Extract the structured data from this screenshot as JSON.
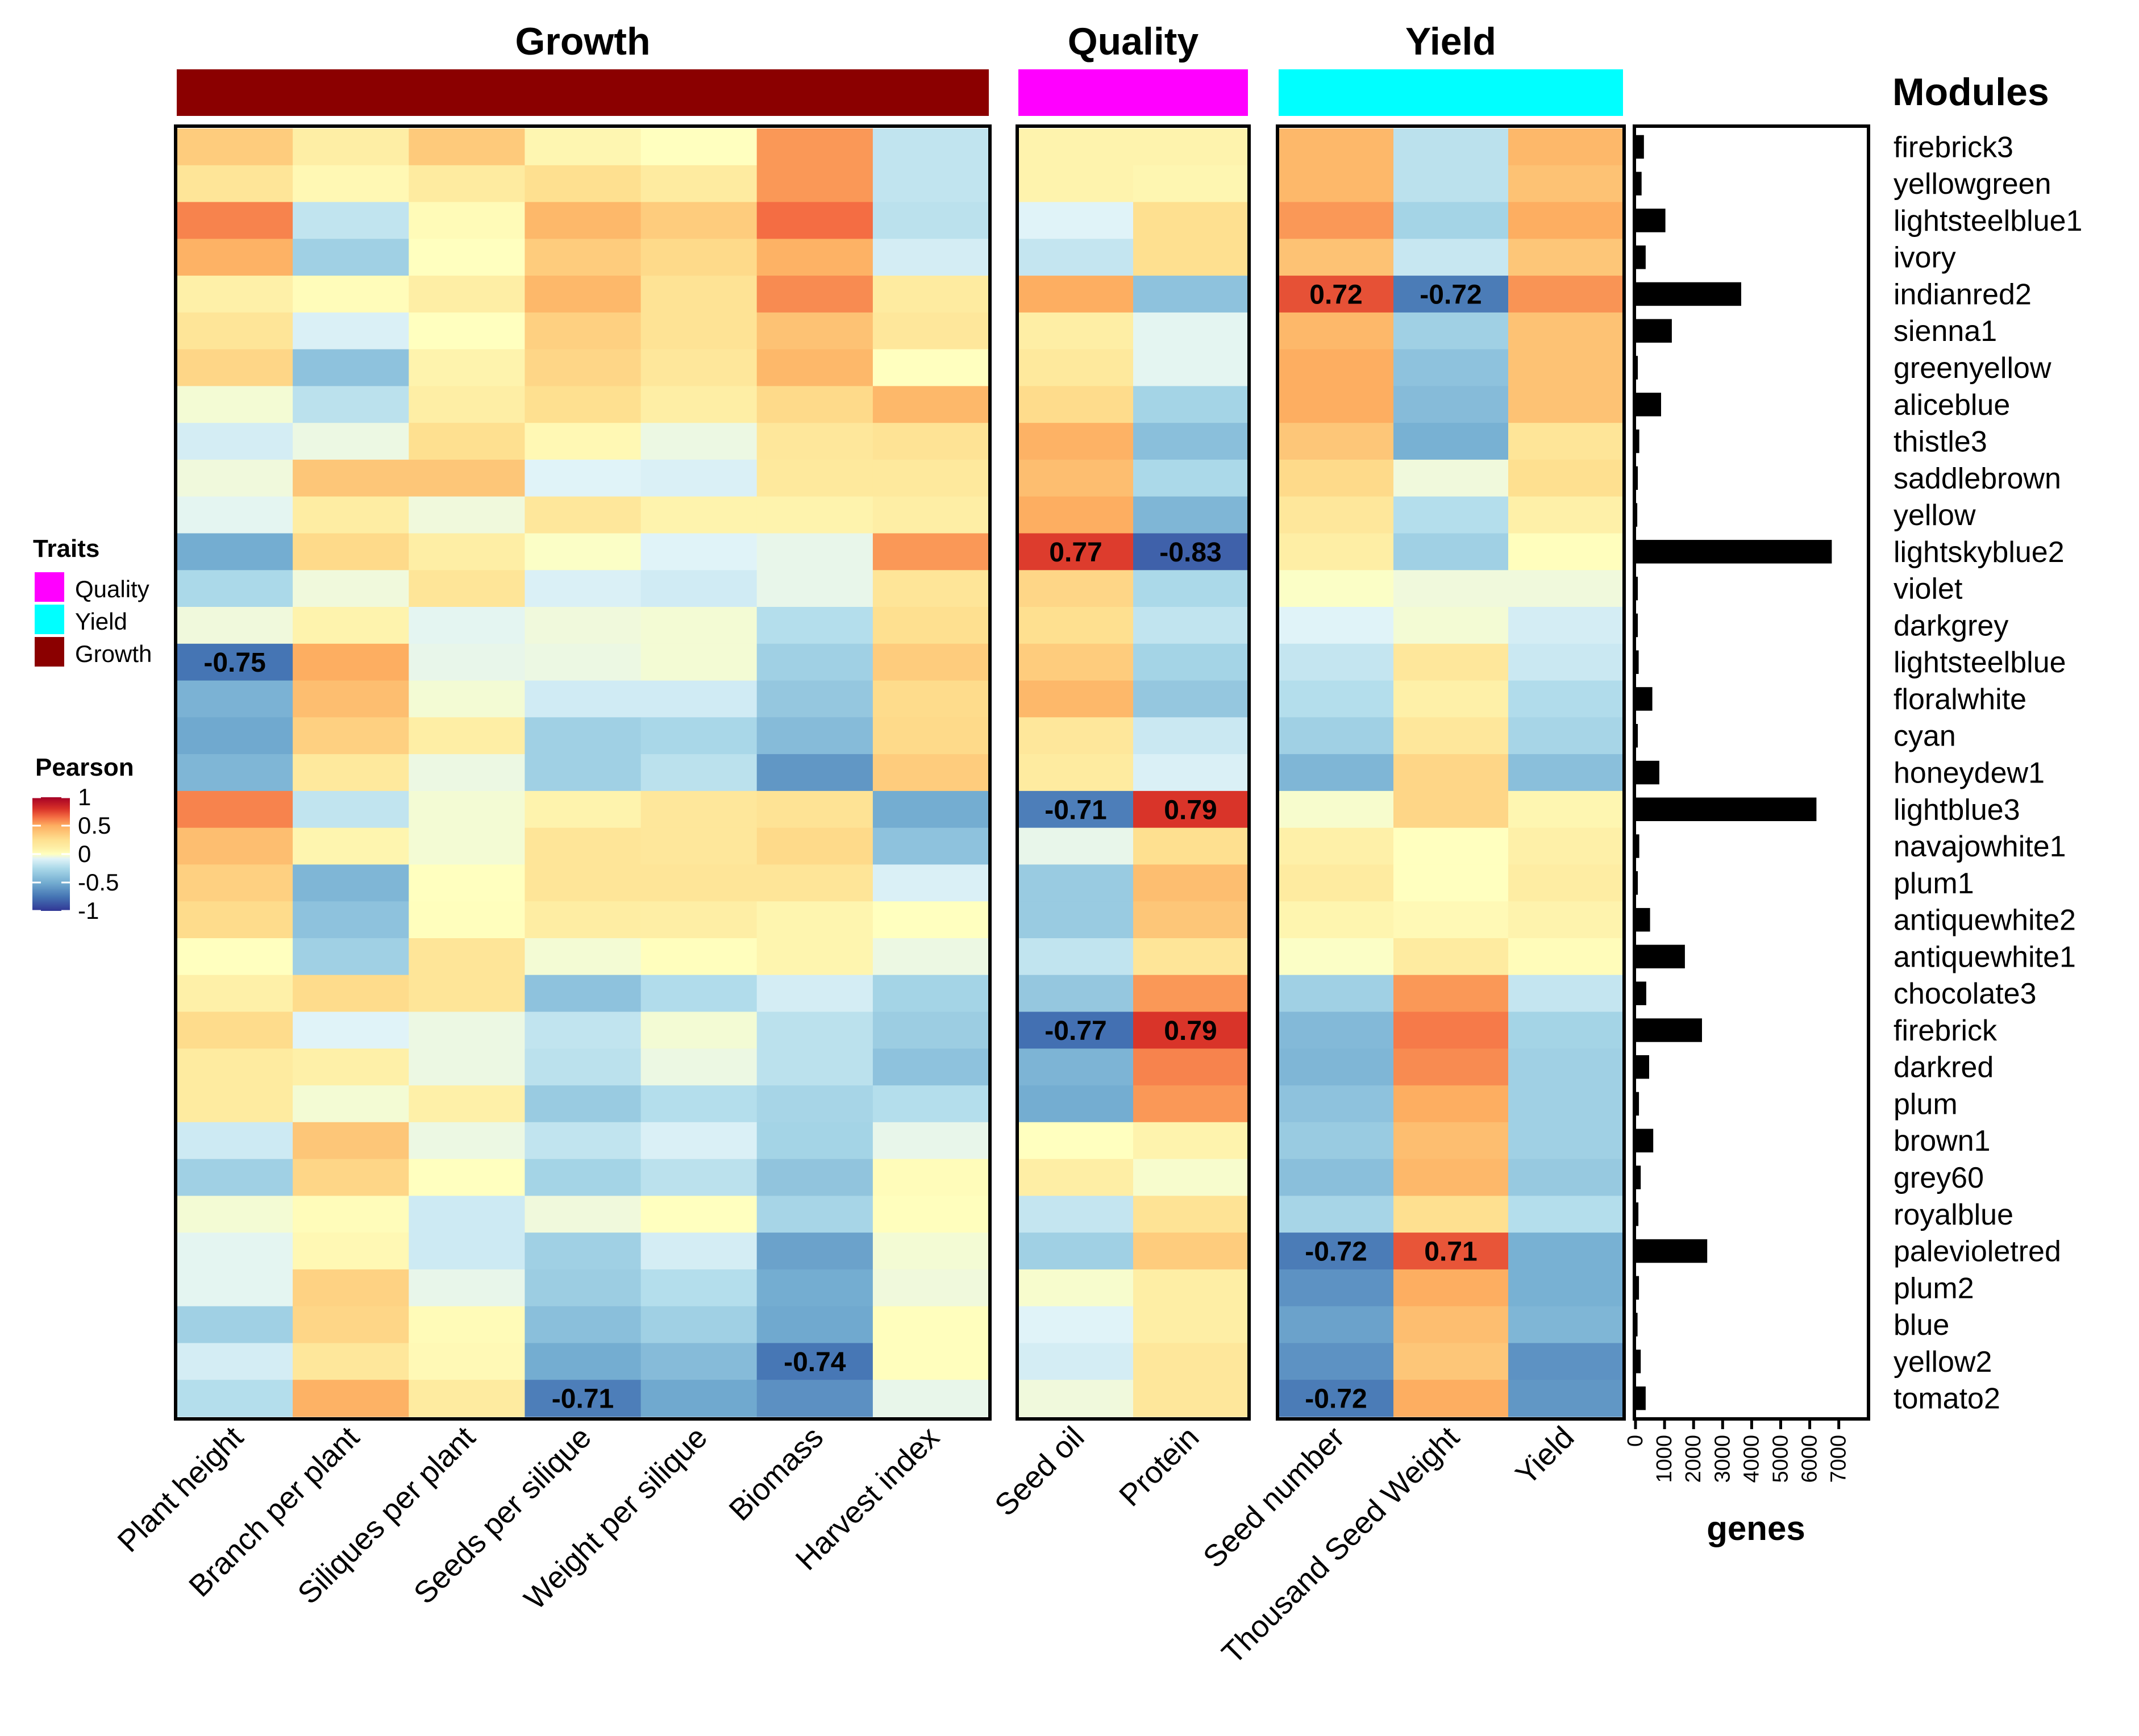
{
  "chart_data": {
    "type": "heatmap",
    "title": "",
    "color_scale": {
      "name": "Pearson",
      "range": [
        -1,
        1
      ],
      "ticks": [
        "1",
        "0.5",
        "0",
        "-0.5",
        "-1"
      ],
      "tick_values": [
        1,
        0.5,
        0,
        -0.5,
        -1
      ],
      "stops": [
        {
          "v": -1,
          "color": "#313695"
        },
        {
          "v": -0.75,
          "color": "#4575B4"
        },
        {
          "v": -0.5,
          "color": "#74ADD1"
        },
        {
          "v": -0.25,
          "color": "#ABD9E9"
        },
        {
          "v": -0.08,
          "color": "#E0F3F8"
        },
        {
          "v": 0,
          "color": "#FFFFBF"
        },
        {
          "v": 0.1,
          "color": "#FEF0A8"
        },
        {
          "v": 0.25,
          "color": "#FEE090"
        },
        {
          "v": 0.5,
          "color": "#FDAE61"
        },
        {
          "v": 0.65,
          "color": "#F46D43"
        },
        {
          "v": 0.8,
          "color": "#D73027"
        },
        {
          "v": 1,
          "color": "#A50026"
        }
      ]
    },
    "groups": [
      {
        "name": "Growth",
        "color": "#8B0000",
        "columns": [
          "Plant height",
          "Branch per plant",
          "Siliques per plant",
          "Seeds per silique",
          "Weight per silique",
          "Biomass",
          "Harvest index"
        ]
      },
      {
        "name": "Quality",
        "color": "#FF00FF",
        "columns": [
          "Seed oil",
          "Protein"
        ]
      },
      {
        "name": "Yield",
        "color": "#00FFFF",
        "columns": [
          "Seed number",
          "Thousand Seed Weight",
          "Yield"
        ]
      }
    ],
    "modules_title": "Modules",
    "rows": [
      "firebrick3",
      "yellowgreen",
      "lightsteelblue1",
      "ivory",
      "indianred2",
      "sienna1",
      "greenyellow",
      "aliceblue",
      "thistle3",
      "saddlebrown",
      "yellow",
      "lightskyblue2",
      "violet",
      "darkgrey",
      "lightsteelblue",
      "floralwhite",
      "cyan",
      "honeydew1",
      "lightblue3",
      "navajowhite1",
      "plum1",
      "antiquewhite2",
      "antiquewhite1",
      "chocolate3",
      "firebrick",
      "darkred",
      "plum",
      "brown1",
      "grey60",
      "royalblue",
      "palevioletred",
      "plum2",
      "blue",
      "yellow2",
      "tomato2"
    ],
    "values": [
      [
        0.35,
        0.12,
        0.36,
        0.06,
        0.0,
        0.55,
        -0.18,
        0.08,
        0.08,
        0.45,
        -0.2,
        0.45
      ],
      [
        0.2,
        0.05,
        0.15,
        0.25,
        0.15,
        0.55,
        -0.18,
        0.08,
        0.06,
        0.45,
        -0.2,
        0.4
      ],
      [
        0.6,
        -0.18,
        0.03,
        0.45,
        0.35,
        0.65,
        -0.2,
        -0.08,
        0.25,
        0.55,
        -0.28,
        0.5
      ],
      [
        0.48,
        -0.3,
        0.0,
        0.35,
        0.28,
        0.48,
        -0.12,
        -0.17,
        0.25,
        0.4,
        -0.16,
        0.38
      ],
      [
        0.1,
        0.02,
        0.12,
        0.45,
        0.22,
        0.58,
        0.15,
        0.5,
        -0.38,
        0.72,
        -0.72,
        0.56
      ],
      [
        0.2,
        -0.1,
        0.0,
        0.33,
        0.22,
        0.4,
        0.18,
        0.12,
        -0.07,
        0.45,
        -0.3,
        0.4
      ],
      [
        0.3,
        -0.38,
        0.08,
        0.3,
        0.18,
        0.45,
        0.0,
        0.17,
        -0.07,
        0.5,
        -0.38,
        0.4
      ],
      [
        -0.03,
        -0.2,
        0.12,
        0.25,
        0.12,
        0.28,
        0.45,
        0.27,
        -0.28,
        0.5,
        -0.42,
        0.4
      ],
      [
        -0.12,
        -0.05,
        0.25,
        0.05,
        -0.05,
        0.18,
        0.22,
        0.48,
        -0.4,
        0.38,
        -0.48,
        0.2
      ],
      [
        -0.04,
        0.38,
        0.38,
        -0.08,
        -0.1,
        0.17,
        0.17,
        0.42,
        -0.25,
        0.28,
        -0.04,
        0.25
      ],
      [
        -0.07,
        0.13,
        -0.04,
        0.18,
        0.08,
        0.08,
        0.12,
        0.5,
        -0.45,
        0.18,
        -0.22,
        0.1
      ],
      [
        -0.5,
        0.28,
        0.12,
        -0.01,
        -0.08,
        -0.06,
        0.55,
        0.77,
        -0.83,
        0.12,
        -0.3,
        0.01
      ],
      [
        -0.25,
        -0.04,
        0.2,
        -0.1,
        -0.13,
        -0.06,
        0.2,
        0.3,
        -0.25,
        -0.01,
        -0.04,
        -0.04
      ],
      [
        -0.04,
        0.08,
        -0.07,
        -0.04,
        -0.03,
        -0.22,
        0.25,
        0.25,
        -0.18,
        -0.08,
        -0.03,
        -0.12
      ],
      [
        -0.75,
        0.5,
        -0.06,
        -0.05,
        -0.03,
        -0.3,
        0.35,
        0.35,
        -0.28,
        -0.17,
        0.18,
        -0.15
      ],
      [
        -0.47,
        0.42,
        -0.03,
        -0.13,
        -0.13,
        -0.35,
        0.27,
        0.45,
        -0.35,
        -0.22,
        0.1,
        -0.23
      ],
      [
        -0.52,
        0.33,
        0.12,
        -0.3,
        -0.26,
        -0.42,
        0.28,
        0.18,
        -0.15,
        -0.3,
        0.18,
        -0.27
      ],
      [
        -0.45,
        0.17,
        -0.05,
        -0.3,
        -0.2,
        -0.6,
        0.35,
        0.15,
        -0.1,
        -0.45,
        0.3,
        -0.4
      ],
      [
        0.6,
        -0.18,
        -0.03,
        0.08,
        0.18,
        0.22,
        -0.5,
        -0.71,
        0.79,
        -0.02,
        0.3,
        0.06
      ],
      [
        0.42,
        0.07,
        -0.03,
        0.2,
        0.18,
        0.28,
        -0.38,
        -0.06,
        0.25,
        0.1,
        0.0,
        0.1
      ],
      [
        0.33,
        -0.45,
        0.0,
        0.2,
        0.2,
        0.2,
        -0.1,
        -0.33,
        0.42,
        0.15,
        0.0,
        0.13
      ],
      [
        0.27,
        -0.38,
        0.01,
        0.13,
        0.12,
        0.07,
        0.0,
        -0.33,
        0.38,
        0.07,
        0.04,
        0.08
      ],
      [
        0.0,
        -0.3,
        0.2,
        -0.03,
        0.01,
        0.07,
        -0.05,
        -0.18,
        0.2,
        -0.01,
        0.15,
        0.02
      ],
      [
        0.1,
        0.27,
        0.2,
        -0.38,
        -0.23,
        -0.12,
        -0.28,
        -0.35,
        0.55,
        -0.3,
        0.55,
        -0.17
      ],
      [
        0.27,
        -0.08,
        -0.05,
        -0.18,
        -0.03,
        -0.2,
        -0.32,
        -0.77,
        0.79,
        -0.43,
        0.62,
        -0.28
      ],
      [
        0.15,
        0.1,
        -0.05,
        -0.2,
        -0.05,
        -0.2,
        -0.38,
        -0.46,
        0.6,
        -0.45,
        0.58,
        -0.3
      ],
      [
        0.15,
        -0.03,
        0.1,
        -0.33,
        -0.22,
        -0.27,
        -0.22,
        -0.5,
        0.55,
        -0.38,
        0.5,
        -0.3
      ],
      [
        -0.14,
        0.38,
        -0.05,
        -0.18,
        -0.1,
        -0.28,
        -0.06,
        0.0,
        0.08,
        -0.33,
        0.42,
        -0.3
      ],
      [
        -0.3,
        0.3,
        0.0,
        -0.28,
        -0.2,
        -0.37,
        0.02,
        0.12,
        -0.02,
        -0.4,
        0.45,
        -0.34
      ],
      [
        -0.03,
        0.02,
        -0.14,
        -0.04,
        0.0,
        -0.27,
        0.01,
        -0.17,
        0.22,
        -0.27,
        0.25,
        -0.22
      ],
      [
        -0.07,
        0.05,
        -0.14,
        -0.3,
        -0.12,
        -0.55,
        -0.03,
        -0.3,
        0.35,
        -0.72,
        0.71,
        -0.48
      ],
      [
        -0.07,
        0.32,
        -0.06,
        -0.32,
        -0.22,
        -0.5,
        -0.04,
        -0.02,
        0.12,
        -0.62,
        0.5,
        -0.48
      ],
      [
        -0.3,
        0.3,
        0.03,
        -0.4,
        -0.3,
        -0.52,
        0.01,
        -0.08,
        0.12,
        -0.55,
        0.42,
        -0.45
      ],
      [
        -0.12,
        0.18,
        0.04,
        -0.5,
        -0.42,
        -0.74,
        0.01,
        -0.12,
        0.18,
        -0.62,
        0.38,
        -0.62
      ],
      [
        -0.22,
        0.48,
        0.15,
        -0.71,
        -0.52,
        -0.63,
        -0.06,
        -0.04,
        0.18,
        -0.72,
        0.5,
        -0.6
      ]
    ],
    "annotations": [
      {
        "row": "indianred2",
        "column": "Seed number",
        "label": "0.72"
      },
      {
        "row": "indianred2",
        "column": "Thousand Seed Weight",
        "label": "-0.72"
      },
      {
        "row": "lightskyblue2",
        "column": "Seed oil",
        "label": "0.77"
      },
      {
        "row": "lightskyblue2",
        "column": "Protein",
        "label": "-0.83"
      },
      {
        "row": "lightsteelblue",
        "column": "Plant height",
        "label": "-0.75"
      },
      {
        "row": "lightblue3",
        "column": "Seed oil",
        "label": "-0.71"
      },
      {
        "row": "lightblue3",
        "column": "Protein",
        "label": "0.79"
      },
      {
        "row": "firebrick",
        "column": "Seed oil",
        "label": "-0.77"
      },
      {
        "row": "firebrick",
        "column": "Protein",
        "label": "0.79"
      },
      {
        "row": "palevioletred",
        "column": "Seed number",
        "label": "-0.72"
      },
      {
        "row": "palevioletred",
        "column": "Thousand Seed Weight",
        "label": "0.71"
      },
      {
        "row": "yellow2",
        "column": "Biomass",
        "label": "-0.74"
      },
      {
        "row": "tomato2",
        "column": "Seeds per silique",
        "label": "-0.71"
      },
      {
        "row": "tomato2",
        "column": "Seed number",
        "label": "-0.72"
      }
    ],
    "gene_counts": {
      "type": "bar",
      "orientation": "horizontal",
      "xlabel": "genes",
      "xlim": [
        0,
        8000
      ],
      "ticks": [
        0,
        1000,
        2000,
        3000,
        4000,
        5000,
        6000,
        7000
      ],
      "tick_labels": [
        "0",
        "1000",
        "2000",
        "3000",
        "4000",
        "5000",
        "6000",
        "7000"
      ],
      "values": [
        290,
        210,
        1030,
        350,
        3640,
        1250,
        80,
        880,
        130,
        80,
        60,
        6760,
        80,
        80,
        110,
        580,
        80,
        820,
        6230,
        130,
        80,
        500,
        1700,
        370,
        2290,
        470,
        120,
        610,
        180,
        100,
        2470,
        120,
        70,
        180,
        350
      ]
    },
    "legend": {
      "traits_title": "Traits",
      "traits": [
        {
          "label": "Quality",
          "color": "#FF00FF"
        },
        {
          "label": "Yield",
          "color": "#00FFFF"
        },
        {
          "label": "Growth",
          "color": "#8B0000"
        }
      ],
      "pearson_title": "Pearson"
    }
  }
}
